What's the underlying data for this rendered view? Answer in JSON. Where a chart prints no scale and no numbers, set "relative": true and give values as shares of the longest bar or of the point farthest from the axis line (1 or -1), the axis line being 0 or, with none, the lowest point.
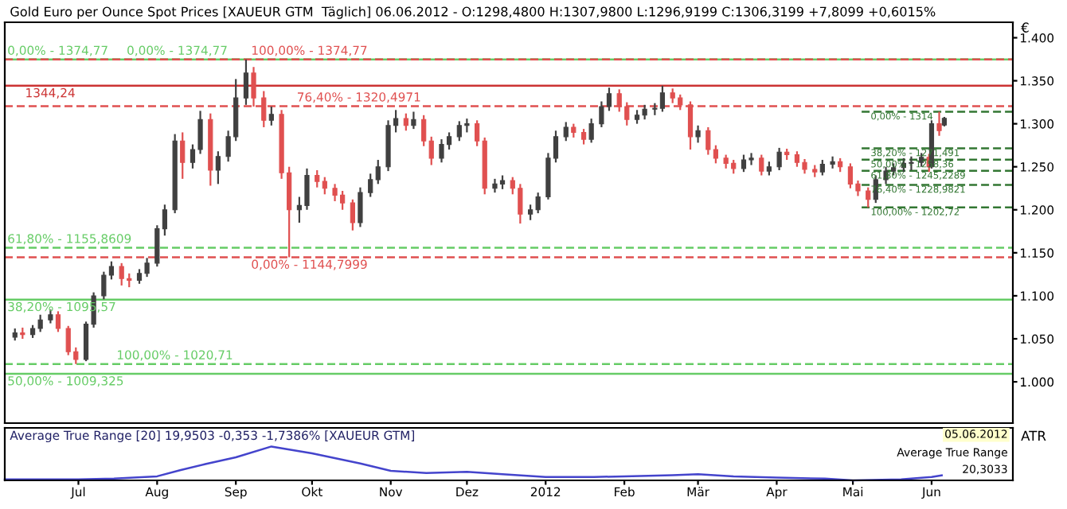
{
  "chart_data": [
    {
      "type": "candlestick",
      "title": "Gold Euro per Ounce Spot Prices [XAUEUR GTM  Täglich] 06.06.2012 - O:1298,4800 H:1307,9800 L:1296,9199 C:1306,3199 +7,8099 +0,6015%",
      "ylabel": "€",
      "x": [
        "2011-06-06",
        "2011-06-09",
        "2011-06-13",
        "2011-06-16",
        "2011-06-20",
        "2011-06-23",
        "2011-06-27",
        "2011-06-30",
        "2011-07-04",
        "2011-07-07",
        "2011-07-11",
        "2011-07-14",
        "2011-07-18",
        "2011-07-21",
        "2011-07-25",
        "2011-07-28",
        "2011-08-01",
        "2011-08-04",
        "2011-08-08",
        "2011-08-11",
        "2011-08-15",
        "2011-08-18",
        "2011-08-22",
        "2011-08-25",
        "2011-08-29",
        "2011-09-01",
        "2011-09-05",
        "2011-09-08",
        "2011-09-12",
        "2011-09-15",
        "2011-09-19",
        "2011-09-22",
        "2011-09-26",
        "2011-09-29",
        "2011-10-03",
        "2011-10-06",
        "2011-10-10",
        "2011-10-13",
        "2011-10-17",
        "2011-10-20",
        "2011-10-24",
        "2011-10-27",
        "2011-10-31",
        "2011-11-03",
        "2011-11-07",
        "2011-11-10",
        "2011-11-14",
        "2011-11-17",
        "2011-11-21",
        "2011-11-24",
        "2011-11-28",
        "2011-12-01",
        "2011-12-05",
        "2011-12-08",
        "2011-12-12",
        "2011-12-15",
        "2011-12-19",
        "2011-12-22",
        "2011-12-26",
        "2011-12-29",
        "2012-01-02",
        "2012-01-05",
        "2012-01-09",
        "2012-01-12",
        "2012-01-16",
        "2012-01-19",
        "2012-01-23",
        "2012-01-26",
        "2012-01-30",
        "2012-02-02",
        "2012-02-06",
        "2012-02-09",
        "2012-02-13",
        "2012-02-16",
        "2012-02-20",
        "2012-02-23",
        "2012-02-27",
        "2012-03-01",
        "2012-03-05",
        "2012-03-08",
        "2012-03-12",
        "2012-03-15",
        "2012-03-19",
        "2012-03-22",
        "2012-03-26",
        "2012-03-29",
        "2012-04-02",
        "2012-04-05",
        "2012-04-09",
        "2012-04-12",
        "2012-04-16",
        "2012-04-19",
        "2012-04-23",
        "2012-04-26",
        "2012-04-30",
        "2012-05-03",
        "2012-05-07",
        "2012-05-10",
        "2012-05-14",
        "2012-05-17",
        "2012-05-21",
        "2012-05-24",
        "2012-05-28",
        "2012-05-31",
        "2012-06-01",
        "2012-06-04",
        "2012-06-06"
      ],
      "ohlc": [
        [
          1052,
          1062,
          1048,
          1057
        ],
        [
          1057,
          1063,
          1050,
          1055
        ],
        [
          1055,
          1066,
          1051,
          1062
        ],
        [
          1062,
          1078,
          1058,
          1072
        ],
        [
          1072,
          1084,
          1068,
          1078
        ],
        [
          1078,
          1082,
          1058,
          1062
        ],
        [
          1062,
          1065,
          1031,
          1035
        ],
        [
          1035,
          1040,
          1020.71,
          1026
        ],
        [
          1026,
          1070,
          1024,
          1067
        ],
        [
          1067,
          1104,
          1063,
          1100
        ],
        [
          1100,
          1128,
          1096,
          1124
        ],
        [
          1124,
          1140,
          1119,
          1134
        ],
        [
          1134,
          1138,
          1112,
          1120
        ],
        [
          1120,
          1126,
          1110,
          1118
        ],
        [
          1118,
          1131,
          1114,
          1126
        ],
        [
          1126,
          1144,
          1122,
          1138
        ],
        [
          1138,
          1182,
          1134,
          1178
        ],
        [
          1178,
          1206,
          1170,
          1200
        ],
        [
          1200,
          1288,
          1196,
          1280
        ],
        [
          1280,
          1290,
          1236,
          1255
        ],
        [
          1255,
          1276,
          1248,
          1270
        ],
        [
          1270,
          1315,
          1265,
          1305
        ],
        [
          1305,
          1312,
          1228,
          1246
        ],
        [
          1246,
          1268,
          1230,
          1262
        ],
        [
          1262,
          1292,
          1256,
          1285
        ],
        [
          1285,
          1352,
          1280,
          1330
        ],
        [
          1330,
          1374.77,
          1322,
          1359
        ],
        [
          1359,
          1366,
          1320,
          1330
        ],
        [
          1330,
          1338,
          1296,
          1304
        ],
        [
          1304,
          1320,
          1298,
          1311
        ],
        [
          1311,
          1316,
          1236,
          1243
        ],
        [
          1243,
          1250,
          1144.7999,
          1200
        ],
        [
          1200,
          1215,
          1185,
          1205
        ],
        [
          1205,
          1248,
          1200,
          1240
        ],
        [
          1240,
          1246,
          1226,
          1233
        ],
        [
          1233,
          1238,
          1218,
          1225
        ],
        [
          1225,
          1230,
          1210,
          1217
        ],
        [
          1217,
          1222,
          1200,
          1208
        ],
        [
          1208,
          1212,
          1176,
          1185
        ],
        [
          1185,
          1226,
          1180,
          1220
        ],
        [
          1220,
          1242,
          1215,
          1235
        ],
        [
          1235,
          1258,
          1230,
          1250
        ],
        [
          1250,
          1304,
          1245,
          1298
        ],
        [
          1298,
          1316,
          1290,
          1306
        ],
        [
          1306,
          1312,
          1292,
          1298
        ],
        [
          1298,
          1314,
          1294,
          1305
        ],
        [
          1305,
          1310,
          1274,
          1280
        ],
        [
          1280,
          1285,
          1252,
          1260
        ],
        [
          1260,
          1282,
          1255,
          1276
        ],
        [
          1276,
          1290,
          1270,
          1285
        ],
        [
          1285,
          1303,
          1280,
          1298
        ],
        [
          1298,
          1306,
          1290,
          1300
        ],
        [
          1300,
          1304,
          1274,
          1280
        ],
        [
          1280,
          1284,
          1218,
          1225
        ],
        [
          1225,
          1236,
          1220,
          1230
        ],
        [
          1230,
          1240,
          1224,
          1234
        ],
        [
          1234,
          1238,
          1218,
          1225
        ],
        [
          1225,
          1230,
          1184,
          1195
        ],
        [
          1195,
          1206,
          1188,
          1200
        ],
        [
          1200,
          1220,
          1196,
          1215
        ],
        [
          1215,
          1266,
          1212,
          1260
        ],
        [
          1260,
          1292,
          1255,
          1285
        ],
        [
          1285,
          1302,
          1280,
          1296
        ],
        [
          1296,
          1300,
          1284,
          1290
        ],
        [
          1290,
          1294,
          1276,
          1282
        ],
        [
          1282,
          1306,
          1278,
          1300
        ],
        [
          1300,
          1326,
          1296,
          1320
        ],
        [
          1320,
          1342,
          1315,
          1335
        ],
        [
          1335,
          1340,
          1314,
          1320
        ],
        [
          1320,
          1325,
          1298,
          1305
        ],
        [
          1305,
          1316,
          1300,
          1310
        ],
        [
          1310,
          1322,
          1305,
          1317
        ],
        [
          1317,
          1324,
          1310,
          1318
        ],
        [
          1318,
          1344.24,
          1314,
          1336
        ],
        [
          1336,
          1341,
          1324,
          1330
        ],
        [
          1330,
          1334,
          1316,
          1322
        ],
        [
          1322,
          1326,
          1270,
          1285
        ],
        [
          1285,
          1298,
          1278,
          1292
        ],
        [
          1292,
          1296,
          1264,
          1270
        ],
        [
          1270,
          1275,
          1254,
          1260
        ],
        [
          1260,
          1264,
          1248,
          1254
        ],
        [
          1254,
          1258,
          1242,
          1248
        ],
        [
          1248,
          1264,
          1244,
          1258
        ],
        [
          1258,
          1266,
          1252,
          1260
        ],
        [
          1260,
          1264,
          1240,
          1245
        ],
        [
          1245,
          1256,
          1240,
          1250
        ],
        [
          1250,
          1272,
          1246,
          1267
        ],
        [
          1267,
          1271,
          1258,
          1264
        ],
        [
          1264,
          1268,
          1250,
          1255
        ],
        [
          1255,
          1259,
          1242,
          1247
        ],
        [
          1247,
          1252,
          1238,
          1244
        ],
        [
          1244,
          1258,
          1240,
          1253
        ],
        [
          1253,
          1262,
          1248,
          1256
        ],
        [
          1256,
          1260,
          1244,
          1250
        ],
        [
          1250,
          1254,
          1225,
          1230
        ],
        [
          1230,
          1234,
          1216,
          1222
        ],
        [
          1222,
          1226,
          1202.72,
          1212
        ],
        [
          1212,
          1240,
          1208,
          1235
        ],
        [
          1235,
          1250,
          1230,
          1245
        ],
        [
          1245,
          1254,
          1240,
          1249
        ],
        [
          1249,
          1260,
          1244,
          1254
        ],
        [
          1254,
          1262,
          1246,
          1255
        ],
        [
          1255,
          1266,
          1250,
          1261
        ],
        [
          1261,
          1265,
          1244,
          1250
        ],
        [
          1250,
          1304,
          1248,
          1300
        ],
        [
          1300,
          1314,
          1286,
          1292
        ],
        [
          1298.48,
          1307.98,
          1296.9199,
          1306.3199
        ]
      ],
      "colors": [
        "#404040",
        "#e05050",
        "#404040",
        "#404040",
        "#404040",
        "#e05050",
        "#e05050",
        "#e05050",
        "#404040",
        "#404040",
        "#404040",
        "#404040",
        "#e05050",
        "#e05050",
        "#404040",
        "#404040",
        "#404040",
        "#404040",
        "#404040",
        "#e05050",
        "#404040",
        "#404040",
        "#e05050",
        "#404040",
        "#404040",
        "#404040",
        "#404040",
        "#e05050",
        "#e05050",
        "#404040",
        "#e05050",
        "#e05050",
        "#404040",
        "#404040",
        "#e05050",
        "#e05050",
        "#e05050",
        "#e05050",
        "#e05050",
        "#404040",
        "#404040",
        "#404040",
        "#404040",
        "#404040",
        "#e05050",
        "#404040",
        "#e05050",
        "#e05050",
        "#404040",
        "#404040",
        "#404040",
        "#404040",
        "#e05050",
        "#e05050",
        "#404040",
        "#404040",
        "#e05050",
        "#e05050",
        "#404040",
        "#404040",
        "#404040",
        "#404040",
        "#404040",
        "#e05050",
        "#e05050",
        "#404040",
        "#404040",
        "#404040",
        "#e05050",
        "#e05050",
        "#404040",
        "#404040",
        "#404040",
        "#404040",
        "#e05050",
        "#e05050",
        "#e05050",
        "#404040",
        "#e05050",
        "#e05050",
        "#e05050",
        "#e05050",
        "#404040",
        "#404040",
        "#e05050",
        "#404040",
        "#404040",
        "#e05050",
        "#e05050",
        "#e05050",
        "#e05050",
        "#404040",
        "#404040",
        "#e05050",
        "#e05050",
        "#e05050",
        "#e05050",
        "#404040",
        "#404040",
        "#404040",
        "#404040",
        "#404040",
        "#404040",
        "#e05050",
        "#404040",
        "#e05050",
        "#404040"
      ],
      "xlim": [
        "2011-06-02",
        "2012-07-03"
      ],
      "ylim": [
        952,
        1418
      ],
      "yticks": [
        {
          "value": 1000,
          "label": "1.000"
        },
        {
          "value": 1050,
          "label": "1.050"
        },
        {
          "value": 1100,
          "label": "1.100"
        },
        {
          "value": 1150,
          "label": "1.150"
        },
        {
          "value": 1200,
          "label": "1.200"
        },
        {
          "value": 1250,
          "label": "1.250"
        },
        {
          "value": 1300,
          "label": "1.300"
        },
        {
          "value": 1350,
          "label": "1.350"
        },
        {
          "value": 1400,
          "label": "1.400"
        }
      ],
      "tick_labels": "y",
      "grid": false,
      "legend": false,
      "ref_lines": [
        {
          "axis": "y",
          "value": 1374.77,
          "color": "#66cc66",
          "line_style": "solid"
        },
        {
          "axis": "y",
          "value": 1374.77,
          "color": "#66cc66",
          "line_style": "dashed"
        },
        {
          "axis": "y",
          "value": 1374.77,
          "color": "#e05050",
          "line_style": "dashed"
        },
        {
          "axis": "y",
          "value": 1344.24,
          "color": "#cc3333",
          "line_style": "solid"
        },
        {
          "axis": "y",
          "value": 1320.4971,
          "color": "#e05050",
          "line_style": "dashed"
        },
        {
          "axis": "y",
          "value": 1155.8609,
          "color": "#66cc66",
          "line_style": "dashed"
        },
        {
          "axis": "y",
          "value": 1144.7999,
          "color": "#e05050",
          "line_style": "dashed"
        },
        {
          "axis": "y",
          "value": 1095.57,
          "color": "#66cc66",
          "line_style": "solid"
        },
        {
          "axis": "y",
          "value": 1020.71,
          "color": "#66cc66",
          "line_style": "dashed"
        },
        {
          "axis": "y",
          "value": 1009.325,
          "color": "#66cc66",
          "line_style": "solid"
        },
        {
          "axis": "y",
          "value": 1314,
          "color": "#337733",
          "line_style": "dashed"
        },
        {
          "axis": "y",
          "value": 1271.491,
          "color": "#337733",
          "line_style": "dashed"
        },
        {
          "axis": "y",
          "value": 1258.36,
          "color": "#337733",
          "line_style": "dashed"
        },
        {
          "axis": "y",
          "value": 1245.2289,
          "color": "#337733",
          "line_style": "dashed"
        },
        {
          "axis": "y",
          "value": 1228.9821,
          "color": "#337733",
          "line_style": "dashed"
        },
        {
          "axis": "y",
          "value": 1202.72,
          "color": "#337733",
          "line_style": "dashed"
        }
      ],
      "annotations": [
        {
          "text": "0,00% - 1374,77",
          "x": "2011-06-03",
          "y": 1374.77
        },
        {
          "text": "0,00% - 1374,77",
          "x": "2011-07-20",
          "y": 1374.77
        },
        {
          "text": "100,00% - 1374,77",
          "x": "2011-09-07",
          "y": 1374.77
        },
        {
          "text": "1344,24",
          "x": "2011-06-10",
          "y": 1344.24
        },
        {
          "text": "76,40% - 1320,4971",
          "x": "2011-09-25",
          "y": 1320.4971
        },
        {
          "text": "61,80% - 1155,8609",
          "x": "2011-06-03",
          "y": 1155.8609
        },
        {
          "text": "0,00% - 1144,7999",
          "x": "2011-09-07",
          "y": 1144.7999
        },
        {
          "text": "38,20% - 1095,57",
          "x": "2011-06-03",
          "y": 1095.57
        },
        {
          "text": "100,00% - 1020,71",
          "x": "2011-07-16",
          "y": 1020.71
        },
        {
          "text": "50,00% - 1009,325",
          "x": "2011-06-03",
          "y": 1009.325
        },
        {
          "text": "0,00% - 1314",
          "x": "2012-05-08",
          "y": 1314
        },
        {
          "text": "38,20% - 1271,491",
          "x": "2012-05-08",
          "y": 1271.491
        },
        {
          "text": "50,00% - 1258,36",
          "x": "2012-05-08",
          "y": 1258.36
        },
        {
          "text": "61,80% - 1245,2289",
          "x": "2012-05-08",
          "y": 1245.2289
        },
        {
          "text": "76,40% - 1228,9821",
          "x": "2012-05-08",
          "y": 1228.9821
        },
        {
          "text": "100,00% - 1202,72",
          "x": "2012-05-08",
          "y": 1202.72
        }
      ]
    },
    {
      "type": "line",
      "title": "Average True Range [20] 19,9503 -0,353 -1,7386% [XAUEUR GTM]",
      "ylabel": "ATR",
      "relative": true,
      "series": [
        {
          "color": "#4444cc",
          "x": [
            "2011-06-02",
            "2011-07-01",
            "2011-07-15",
            "2011-08-01",
            "2011-08-10",
            "2011-08-20",
            "2011-09-01",
            "2011-09-15",
            "2011-10-01",
            "2011-10-20",
            "2011-11-01",
            "2011-11-15",
            "2011-12-01",
            "2011-12-15",
            "2012-01-01",
            "2012-01-20",
            "2012-02-01",
            "2012-02-20",
            "2012-03-01",
            "2012-03-15",
            "2012-04-01",
            "2012-04-20",
            "2012-05-01",
            "2012-05-20",
            "2012-06-01",
            "2012-06-05"
          ],
          "values": [
            0.03,
            0.03,
            0.05,
            0.12,
            0.3,
            0.48,
            0.68,
            1.0,
            0.8,
            0.5,
            0.28,
            0.22,
            0.25,
            0.18,
            0.1,
            0.1,
            0.12,
            0.15,
            0.18,
            0.12,
            0.08,
            0.05,
            0.0,
            0.03,
            0.1,
            0.15
          ]
        }
      ],
      "xlim": [
        "2011-06-02",
        "2012-07-03"
      ],
      "xticks": [
        {
          "value": "2011-07-01",
          "label": "Jul"
        },
        {
          "value": "2011-08-01",
          "label": "Aug"
        },
        {
          "value": "2011-09-01",
          "label": "Sep"
        },
        {
          "value": "2011-10-01",
          "label": "Okt"
        },
        {
          "value": "2011-11-01",
          "label": "Nov"
        },
        {
          "value": "2011-12-01",
          "label": "Dez"
        },
        {
          "value": "2012-01-01",
          "label": "2012"
        },
        {
          "value": "2012-02-01",
          "label": "Feb"
        },
        {
          "value": "2012-03-01",
          "label": "Mär"
        },
        {
          "value": "2012-04-01",
          "label": "Apr"
        },
        {
          "value": "2012-05-01",
          "label": "Mai"
        },
        {
          "value": "2012-06-01",
          "label": "Jun"
        }
      ],
      "tick_labels": "x",
      "grid": false,
      "legend": false,
      "annotations": [
        "05.06.2012",
        "Average True Range",
        "20,3033"
      ]
    }
  ]
}
